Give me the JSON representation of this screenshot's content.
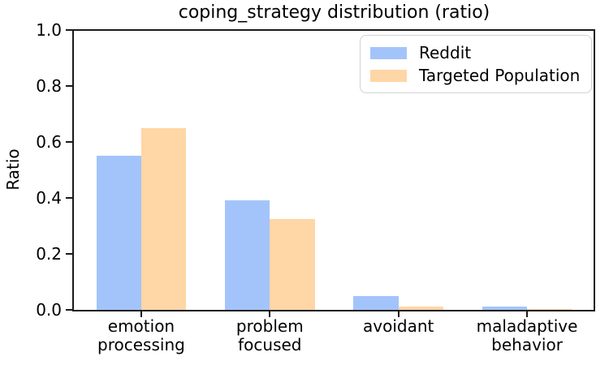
{
  "chart_data": {
    "type": "bar",
    "title": "coping_strategy distribution (ratio)",
    "ylabel": "Ratio",
    "xlabel": "",
    "categories": [
      "emotion\nprocessing",
      "problem\nfocused",
      "avoidant",
      "maladaptive\nbehavior"
    ],
    "series": [
      {
        "name": "Reddit",
        "color": "#a3c4fa",
        "values": [
          0.55,
          0.39,
          0.05,
          0.012
        ]
      },
      {
        "name": "Targeted Population",
        "color": "#ffd6a6",
        "values": [
          0.65,
          0.325,
          0.012,
          0.004
        ]
      }
    ],
    "ylim": [
      0.0,
      1.0
    ],
    "xlim": [
      -0.53,
      3.53
    ],
    "yticks": [
      0.0,
      0.2,
      0.4,
      0.6,
      0.8,
      1.0
    ],
    "ytick_labels": [
      "0.0",
      "0.2",
      "0.4",
      "0.6",
      "0.8",
      "1.0"
    ],
    "bar_width": 0.35,
    "grid": false,
    "legend_position": "upper right",
    "axis_color": "#1a1a1a",
    "text_color": "#000000",
    "background_color": "#ffffff"
  }
}
